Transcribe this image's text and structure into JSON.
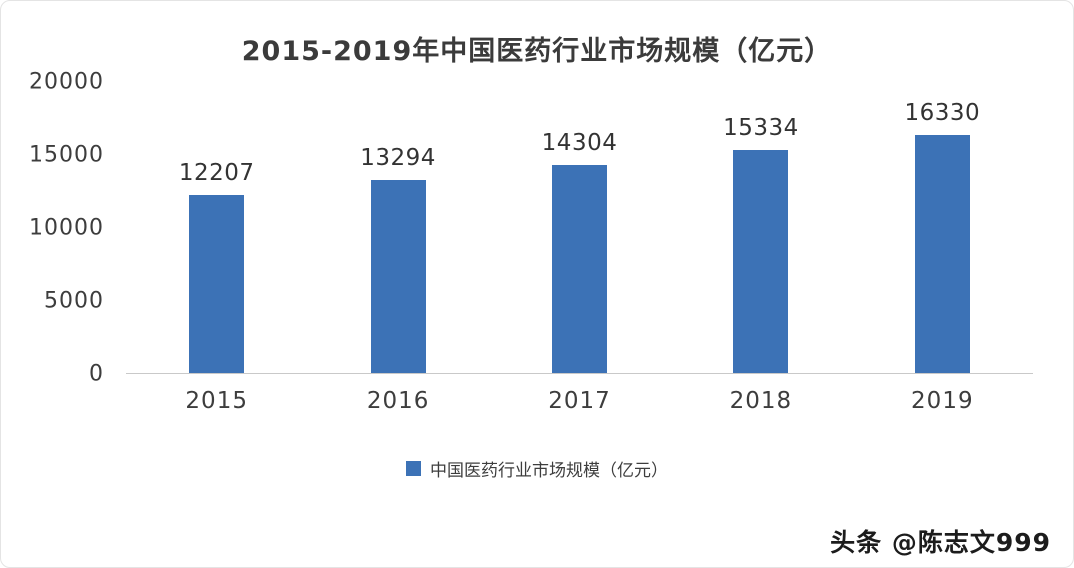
{
  "chart_data": {
    "type": "bar",
    "title": "2015-2019年中国医药行业市场规模（亿元）",
    "categories": [
      "2015",
      "2016",
      "2017",
      "2018",
      "2019"
    ],
    "values": [
      12207,
      13294,
      14304,
      15334,
      16330
    ],
    "ylabel": "",
    "xlabel": "",
    "ylim": [
      0,
      20000
    ],
    "yticks": [
      20000,
      15000,
      10000,
      5000,
      0
    ],
    "grid": false,
    "legend": "中国医药行业市场规模（亿元）",
    "legend_position": "bottom",
    "bar_color": "#3c72b6"
  },
  "watermark": "头条 @陈志文999"
}
